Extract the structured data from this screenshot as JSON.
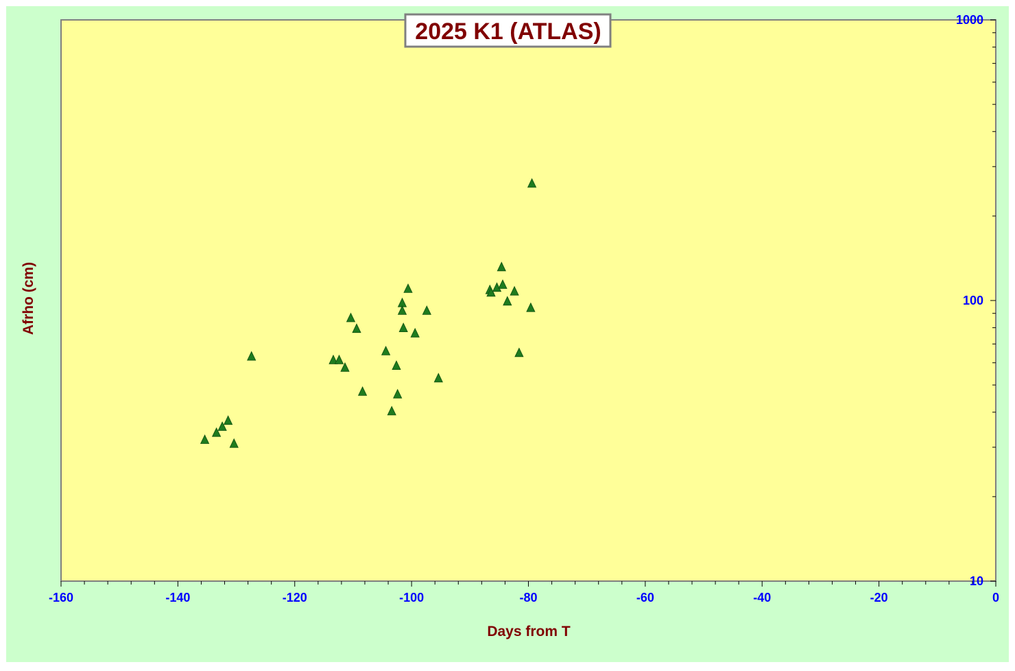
{
  "colors": {
    "outer_background": "#ccffcc",
    "plot_background": "#ffff99",
    "title_text": "#800000",
    "axis_title_text": "#800000",
    "tick_label_text": "#0000ff",
    "marker": "#1e7b1e",
    "plot_border": "#808080"
  },
  "chart_data": {
    "type": "scatter",
    "title": "2025 K1 (ATLAS)",
    "xlabel": "Days from T",
    "ylabel": "Afrho (cm)",
    "xlim": [
      -160,
      0
    ],
    "ylim": [
      10,
      1000
    ],
    "yscale": "log",
    "y_axis_side": "right",
    "grid": false,
    "legend": "none",
    "marker": "triangle",
    "x_ticks": [
      -160,
      -140,
      -120,
      -100,
      -80,
      -60,
      -40,
      -20,
      0
    ],
    "x_tick_labels": [
      "-160",
      "-140",
      "-120",
      "-100",
      "-80",
      "-60",
      "-40",
      "-20",
      "0"
    ],
    "y_ticks": [
      10,
      100,
      1000
    ],
    "y_tick_labels": [
      "10",
      "100",
      "1000"
    ],
    "points": [
      {
        "x": -135.4,
        "y": 31.8
      },
      {
        "x": -133.4,
        "y": 33.7
      },
      {
        "x": -132.4,
        "y": 35.4
      },
      {
        "x": -131.4,
        "y": 37.2
      },
      {
        "x": -130.4,
        "y": 30.8
      },
      {
        "x": -127.4,
        "y": 63.0
      },
      {
        "x": -113.4,
        "y": 61.2
      },
      {
        "x": -112.4,
        "y": 61.2
      },
      {
        "x": -111.4,
        "y": 57.5
      },
      {
        "x": -110.4,
        "y": 86.4
      },
      {
        "x": -109.4,
        "y": 79.1
      },
      {
        "x": -108.4,
        "y": 47.2
      },
      {
        "x": -104.4,
        "y": 65.8
      },
      {
        "x": -103.4,
        "y": 40.2
      },
      {
        "x": -102.6,
        "y": 58.4
      },
      {
        "x": -102.4,
        "y": 46.2
      },
      {
        "x": -101.6,
        "y": 97.7
      },
      {
        "x": -101.6,
        "y": 91.7
      },
      {
        "x": -101.4,
        "y": 79.6
      },
      {
        "x": -100.6,
        "y": 109.8
      },
      {
        "x": -99.4,
        "y": 76.2
      },
      {
        "x": -97.4,
        "y": 91.7
      },
      {
        "x": -95.4,
        "y": 52.7
      },
      {
        "x": -86.6,
        "y": 108.7
      },
      {
        "x": -86.4,
        "y": 106.5
      },
      {
        "x": -85.4,
        "y": 110.8
      },
      {
        "x": -84.6,
        "y": 131.2
      },
      {
        "x": -84.4,
        "y": 113.5
      },
      {
        "x": -83.6,
        "y": 99.0
      },
      {
        "x": -82.4,
        "y": 107.5
      },
      {
        "x": -81.6,
        "y": 64.9
      },
      {
        "x": -79.6,
        "y": 93.9
      },
      {
        "x": -79.4,
        "y": 260.4
      }
    ]
  }
}
